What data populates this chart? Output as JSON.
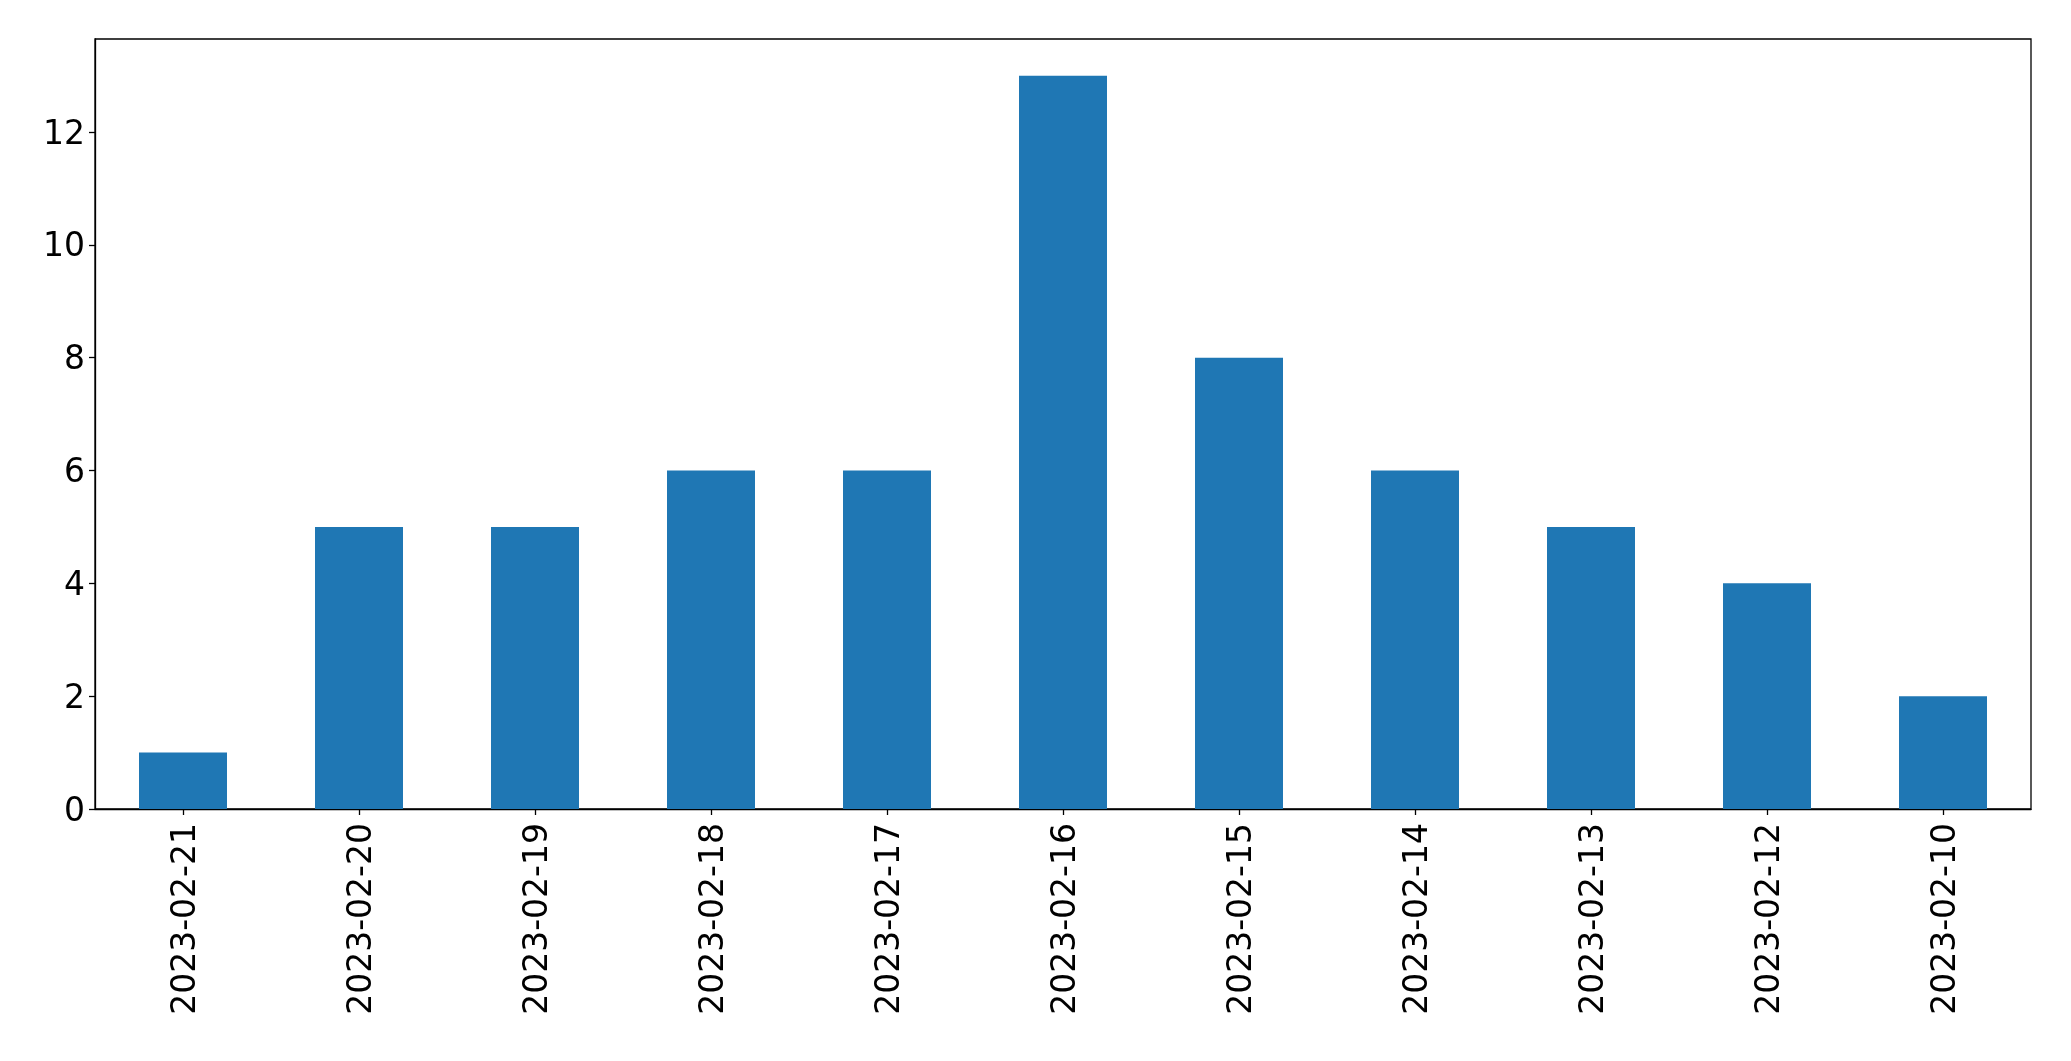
{
  "chart_data": {
    "type": "bar",
    "categories": [
      "2023-02-21",
      "2023-02-20",
      "2023-02-19",
      "2023-02-18",
      "2023-02-17",
      "2023-02-16",
      "2023-02-15",
      "2023-02-14",
      "2023-02-13",
      "2023-02-12",
      "2023-02-10"
    ],
    "values": [
      1,
      5,
      5,
      6,
      6,
      13,
      8,
      6,
      5,
      4,
      2
    ],
    "color": "#1f77b4",
    "ylim": [
      0,
      13.65
    ],
    "yticks": [
      0,
      2,
      4,
      6,
      8,
      10,
      12
    ]
  }
}
